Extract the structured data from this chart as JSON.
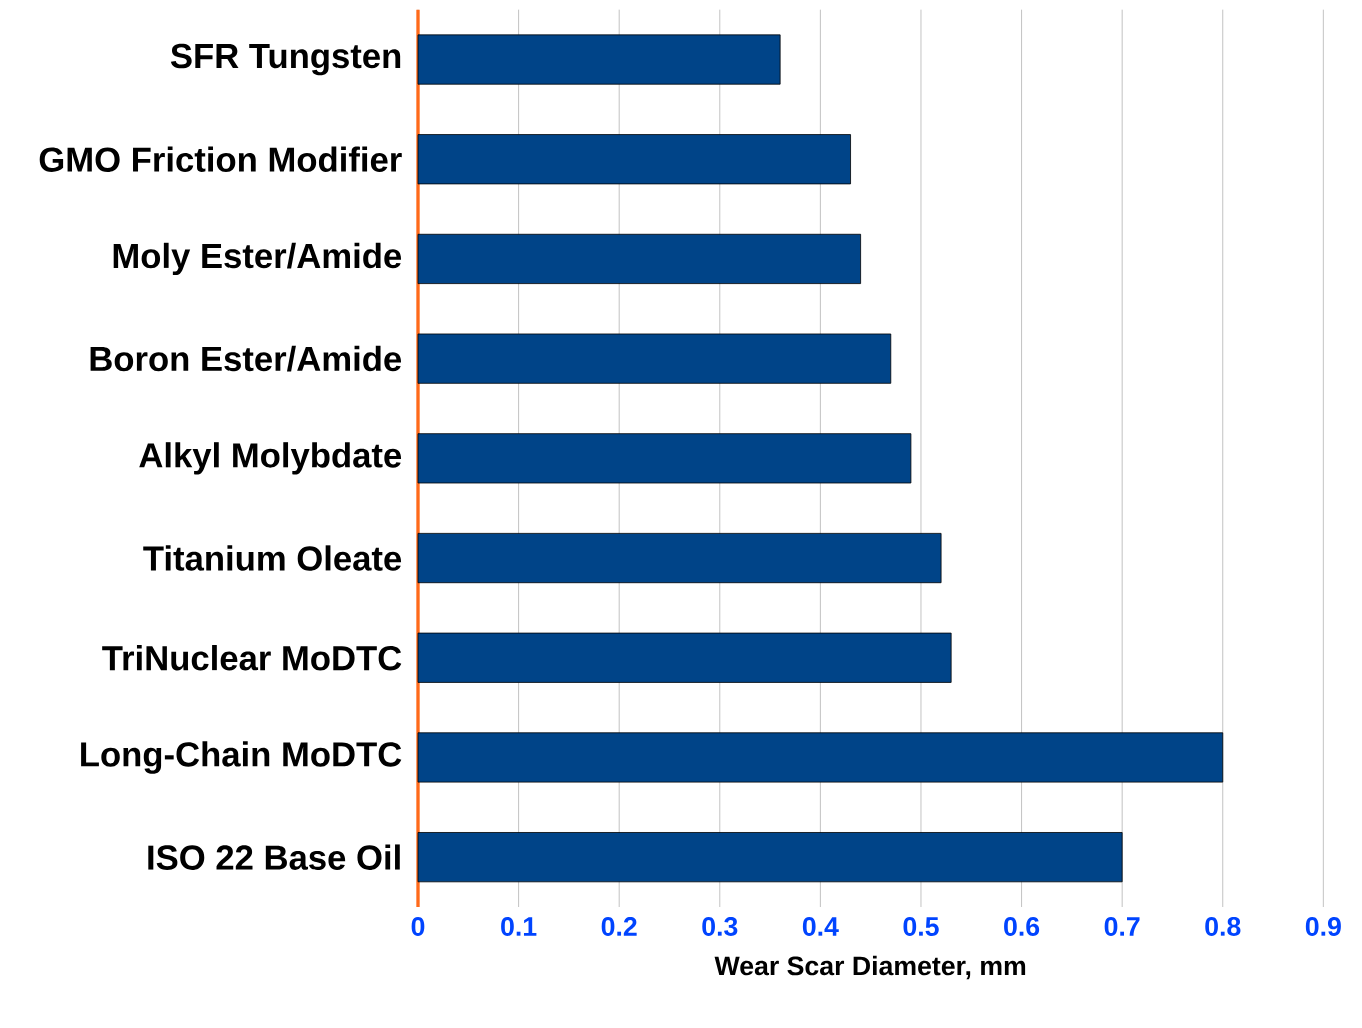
{
  "chart_data": {
    "type": "bar",
    "orientation": "horizontal",
    "xlabel": "Wear Scar Diameter, mm",
    "categories": [
      "SFR Tungsten",
      "GMO Friction Modifier",
      "Moly Ester/Amide",
      "Boron Ester/Amide",
      "Alkyl Molybdate",
      "Titanium Oleate",
      "TriNuclear MoDTC",
      "Long-Chain MoDTC",
      "ISO 22 Base Oil"
    ],
    "values": [
      0.36,
      0.43,
      0.44,
      0.47,
      0.49,
      0.52,
      0.53,
      0.8,
      0.7
    ],
    "color": "#004488",
    "xlim": [
      0,
      0.9
    ],
    "xticks": [
      0,
      0.1,
      0.2,
      0.3,
      0.4,
      0.5,
      0.6,
      0.7,
      0.8,
      0.9
    ],
    "grid": "x"
  }
}
